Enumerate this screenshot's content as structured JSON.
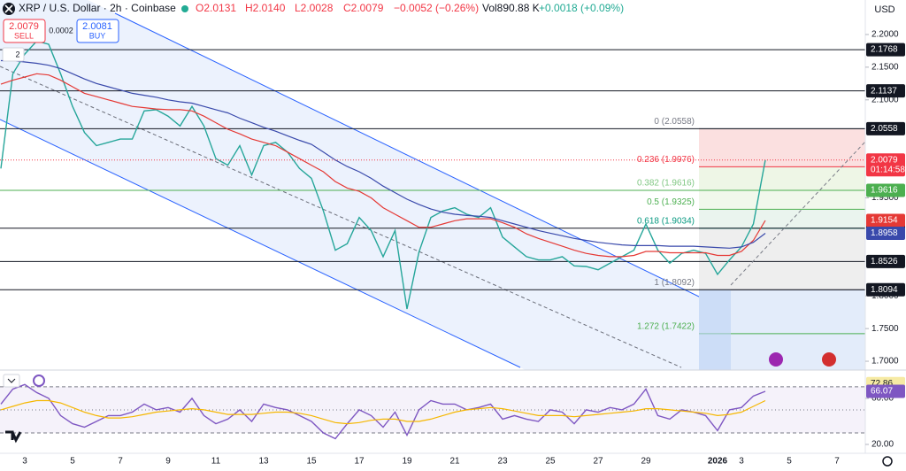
{
  "header": {
    "symbol": "XRP / U.S. Dollar · 2h · Coinbase",
    "ohlc": [
      "O2.0131",
      "H2.0140",
      "L2.0028",
      "C2.0079",
      "−0.0052 (−0.26%)"
    ],
    "volume": "Vol890.88 K",
    "volume_change": "+0.0018 (+0.09%)"
  },
  "trade": {
    "sell_price": "2.0079",
    "sell": "SELL",
    "spread": "0.0002",
    "buy_price": "2.0081",
    "buy": "BUY",
    "lines_count": "2"
  },
  "currency": "USD",
  "countdown": "01:14:58",
  "chart_data": [
    {
      "type": "line",
      "categories": [
        null,
        null,
        "3",
        null,
        null,
        null,
        "5",
        null,
        null,
        null,
        "7",
        null,
        null,
        null,
        "9",
        null,
        null,
        null,
        "11",
        null,
        null,
        null,
        "13",
        null,
        null,
        null,
        "15",
        null,
        null,
        null,
        "17",
        null,
        null,
        null,
        "19",
        null,
        null,
        null,
        "21",
        null,
        null,
        null,
        "23",
        null,
        null,
        null,
        "25",
        null,
        null,
        null,
        "27",
        null,
        null,
        null,
        "29",
        null,
        null,
        null,
        null,
        null,
        "2026",
        null,
        "3",
        null,
        null,
        null,
        "5",
        null,
        null,
        null,
        "7"
      ],
      "series": [
        {
          "color": "#26a69a",
          "values": [
            1.995,
            2.14,
            2.17,
            2.19,
            2.185,
            2.14,
            2.09,
            2.05,
            2.03,
            2.035,
            2.04,
            2.04,
            2.083,
            2.085,
            2.075,
            2.06,
            2.09,
            2.06,
            2.01,
            2.0,
            2.03,
            1.985,
            2.03,
            2.035,
            2.02,
            1.995,
            1.98,
            1.93,
            1.87,
            1.88,
            1.92,
            1.9,
            1.86,
            1.9,
            1.78,
            1.867,
            1.92,
            1.93,
            1.935,
            1.925,
            1.92,
            1.935,
            1.89,
            1.875,
            1.86,
            1.855,
            1.855,
            1.86,
            1.846,
            1.845,
            1.84,
            1.85,
            1.86,
            1.87,
            1.91,
            1.87,
            1.85,
            1.865,
            1.87,
            1.865,
            1.833,
            1.855,
            1.875,
            1.91,
            2.0079,
            null,
            null,
            null,
            null,
            null,
            null
          ]
        },
        {
          "color": "#e53935",
          "values": [
            2.124,
            2.13,
            2.135,
            2.14,
            2.138,
            2.13,
            2.12,
            2.11,
            2.105,
            2.1,
            2.095,
            2.09,
            2.088,
            2.086,
            2.085,
            2.085,
            2.083,
            2.075,
            2.065,
            2.055,
            2.048,
            2.04,
            2.035,
            2.03,
            2.02,
            2.01,
            2.0,
            1.99,
            1.975,
            1.965,
            1.96,
            1.95,
            1.935,
            1.925,
            1.915,
            1.905,
            1.905,
            1.91,
            1.915,
            1.918,
            1.918,
            1.918,
            1.912,
            1.905,
            1.895,
            1.888,
            1.882,
            1.876,
            1.87,
            1.865,
            1.862,
            1.86,
            1.86,
            1.862,
            1.868,
            1.868,
            1.866,
            1.866,
            1.866,
            1.866,
            1.862,
            1.862,
            1.868,
            1.885,
            1.9154,
            null,
            null,
            null,
            null,
            null,
            null
          ]
        },
        {
          "color": "#3949ab",
          "values": [
            2.16,
            2.16,
            2.158,
            2.156,
            2.153,
            2.148,
            2.14,
            2.132,
            2.125,
            2.12,
            2.115,
            2.11,
            2.107,
            2.104,
            2.1,
            2.097,
            2.095,
            2.09,
            2.085,
            2.08,
            2.072,
            2.065,
            2.058,
            2.052,
            2.045,
            2.038,
            2.032,
            2.02,
            2.008,
            1.998,
            1.99,
            1.98,
            1.968,
            1.958,
            1.948,
            1.94,
            1.933,
            1.928,
            1.925,
            1.923,
            1.922,
            1.92,
            1.915,
            1.91,
            1.905,
            1.9,
            1.896,
            1.892,
            1.888,
            1.885,
            1.882,
            1.88,
            1.878,
            1.877,
            1.877,
            1.877,
            1.876,
            1.876,
            1.876,
            1.875,
            1.874,
            1.873,
            1.875,
            1.882,
            1.8958,
            null,
            null,
            null,
            null,
            null,
            null
          ]
        }
      ],
      "ylim": [
        1.6865,
        2.2528
      ],
      "yticks": [
        {
          "value": 1.7,
          "label": "1.7000"
        },
        {
          "value": 1.75,
          "label": "1.7500"
        },
        {
          "value": 1.8,
          "label": "1.8000"
        },
        {
          "value": 1.95,
          "label": "1.9500"
        },
        {
          "value": 2.1,
          "label": "2.1000"
        },
        {
          "value": 2.15,
          "label": "2.1500"
        },
        {
          "value": 2.2,
          "label": "2.2000"
        }
      ],
      "price_lines": [
        2.1768,
        2.1137,
        2.0558,
        1.9036,
        1.8526,
        1.8094
      ],
      "price_line_color": "#131722",
      "level_line": 1.9616,
      "level_line_color": "#4caf50",
      "fibonacci": [
        {
          "value": 2.0558,
          "label": "0 (2.0558)",
          "color": "#787b86",
          "fill": "#fbe0e0"
        },
        {
          "value": 1.9976,
          "label": "0.236 (1.9976)",
          "color": "#f23645",
          "fill": "#eef6e6"
        },
        {
          "value": 1.9616,
          "label": "0.382 (1.9616)",
          "color": "#81c784",
          "fill": "#f1f8ec"
        },
        {
          "value": 1.9325,
          "label": "0.5 (1.9325)",
          "color": "#4caf50",
          "fill": "#eaf4ee"
        },
        {
          "value": 1.9034,
          "label": "0.618 (1.9034)",
          "color": "#089981",
          "fill": "#eeeeee"
        },
        {
          "value": 1.8092,
          "label": "1 (1.8092)",
          "color": "#787b86",
          "fill": "#e3ecfa"
        },
        {
          "value": 1.7422,
          "label": "1.272 (1.7422)",
          "color": "#4caf50",
          "fill": "#e3ecfa"
        }
      ]
    },
    {
      "type": "line",
      "series": [
        {
          "color": "#7e57c2",
          "values": [
            55,
            68,
            72,
            65,
            60,
            45,
            38,
            35,
            40,
            45,
            45,
            48,
            55,
            50,
            52,
            48,
            60,
            45,
            38,
            42,
            50,
            40,
            55,
            52,
            50,
            45,
            40,
            30,
            25,
            38,
            50,
            45,
            35,
            48,
            28,
            50,
            58,
            55,
            55,
            50,
            52,
            55,
            42,
            45,
            42,
            40,
            50,
            48,
            38,
            50,
            48,
            52,
            50,
            55,
            68,
            45,
            42,
            50,
            48,
            45,
            32,
            50,
            52,
            62,
            66.07
          ]
        },
        {
          "color": "#f5b700",
          "values": [
            50,
            53,
            56,
            58,
            58,
            56,
            52,
            48,
            45,
            43,
            43,
            44,
            46,
            48,
            49,
            50,
            51,
            50,
            48,
            46,
            46,
            46,
            47,
            48,
            48,
            47,
            45,
            42,
            39,
            38,
            39,
            41,
            42,
            42,
            40,
            40,
            42,
            45,
            48,
            50,
            51,
            52,
            51,
            49,
            47,
            45,
            45,
            45,
            44,
            45,
            46,
            47,
            48,
            49,
            51,
            51,
            50,
            49,
            48,
            47,
            45,
            46,
            48,
            53,
            58
          ]
        }
      ],
      "ylim": [
        12.3,
        83
      ],
      "yticks": [
        {
          "value": 60,
          "label": "60.00"
        },
        {
          "value": 20,
          "label": "20.00"
        }
      ],
      "levels": [
        70,
        50,
        30
      ],
      "tags": [
        72.86,
        66.07
      ],
      "tag_colors": [
        "#f6eaa4",
        "#7e57c2"
      ]
    }
  ]
}
